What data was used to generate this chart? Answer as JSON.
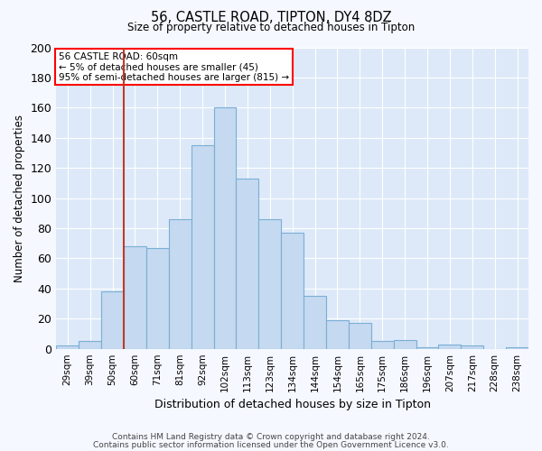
{
  "title1": "56, CASTLE ROAD, TIPTON, DY4 8DZ",
  "title2": "Size of property relative to detached houses in Tipton",
  "xlabel": "Distribution of detached houses by size in Tipton",
  "ylabel": "Number of detached properties",
  "categories": [
    "29sqm",
    "39sqm",
    "50sqm",
    "60sqm",
    "71sqm",
    "81sqm",
    "92sqm",
    "102sqm",
    "113sqm",
    "123sqm",
    "134sqm",
    "144sqm",
    "154sqm",
    "165sqm",
    "175sqm",
    "186sqm",
    "196sqm",
    "207sqm",
    "217sqm",
    "228sqm",
    "238sqm"
  ],
  "values": [
    2,
    5,
    38,
    68,
    67,
    86,
    135,
    160,
    113,
    86,
    77,
    35,
    19,
    17,
    5,
    6,
    1,
    3,
    2,
    0,
    1
  ],
  "bar_color": "#c5d9f0",
  "bar_edge_color": "#7bafd4",
  "vline_x_index": 3,
  "annotation_box_text": [
    "56 CASTLE ROAD: 60sqm",
    "← 5% of detached houses are smaller (45)",
    "95% of semi-detached houses are larger (815) →"
  ],
  "box_color": "red",
  "vline_color": "#c0392b",
  "ylim": [
    0,
    200
  ],
  "yticks": [
    0,
    20,
    40,
    60,
    80,
    100,
    120,
    140,
    160,
    180,
    200
  ],
  "fig_bg_color": "#f5f8ff",
  "plot_bg_color": "#dde9f8",
  "grid_color": "#ffffff",
  "footer1": "Contains HM Land Registry data © Crown copyright and database right 2024.",
  "footer2": "Contains public sector information licensed under the Open Government Licence v3.0."
}
